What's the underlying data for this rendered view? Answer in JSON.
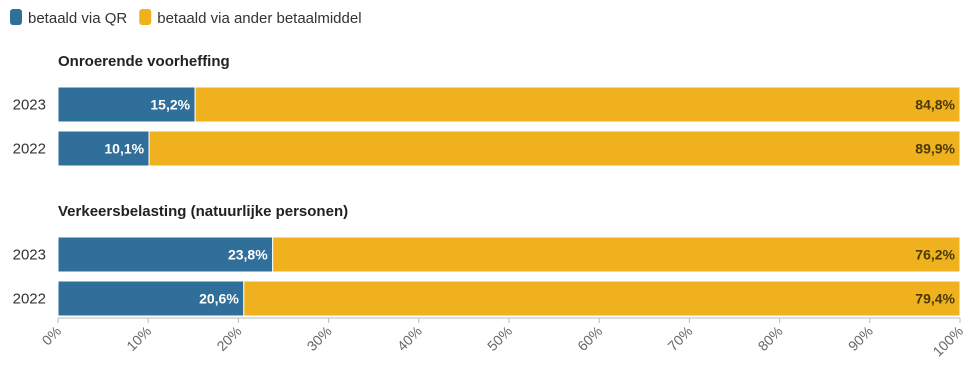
{
  "chart_data": {
    "type": "bar",
    "orientation": "horizontal",
    "stacked": true,
    "legend": [
      {
        "name": "betaald via QR",
        "color": "#2f6f9a"
      },
      {
        "name": "betaald via ander betaalmiddel",
        "color": "#efb21e"
      }
    ],
    "legend_position": "top-left",
    "groups": [
      {
        "title": "Onroerende voorheffing",
        "rows": [
          {
            "label": "2023",
            "values": [
              15.2,
              84.8
            ],
            "value_labels": [
              "15,2%",
              "84,8%"
            ]
          },
          {
            "label": "2022",
            "values": [
              10.1,
              89.9
            ],
            "value_labels": [
              "10,1%",
              "89,9%"
            ]
          }
        ]
      },
      {
        "title": "Verkeersbelasting (natuurlijke personen)",
        "rows": [
          {
            "label": "2023",
            "values": [
              23.8,
              76.2
            ],
            "value_labels": [
              "23,8%",
              "76,2%"
            ]
          },
          {
            "label": "2022",
            "values": [
              20.6,
              79.4
            ],
            "value_labels": [
              "20,6%",
              "79,4%"
            ]
          }
        ]
      }
    ],
    "x_ticks": [
      "0%",
      "10%",
      "20%",
      "30%",
      "40%",
      "50%",
      "60%",
      "70%",
      "80%",
      "90%",
      "100%"
    ],
    "xlim": [
      0,
      100
    ],
    "grid": false
  }
}
